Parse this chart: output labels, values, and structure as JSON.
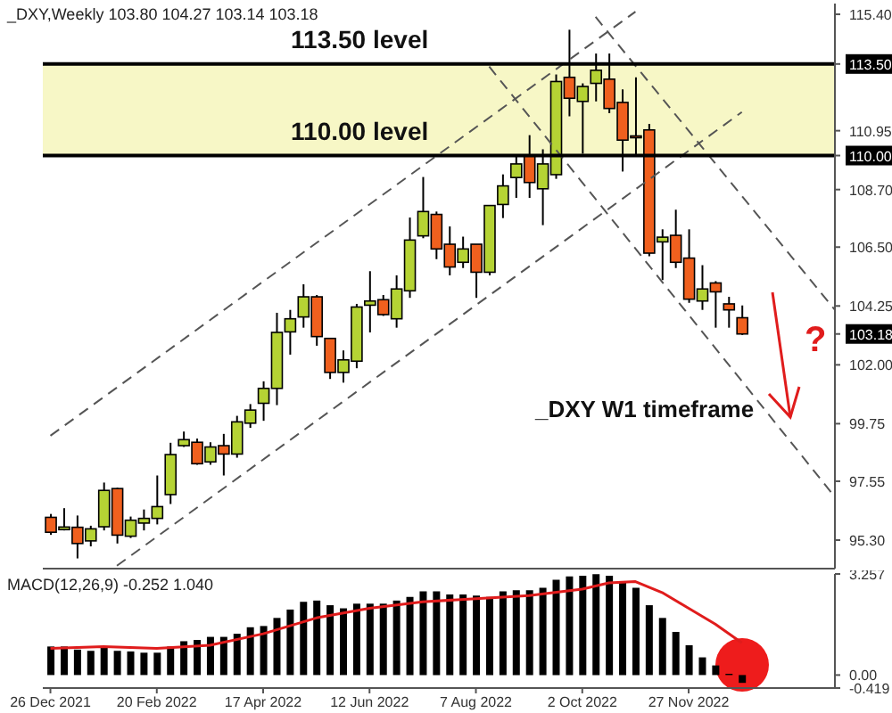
{
  "chart_data": [
    {
      "type": "candlestick",
      "title": "_DXY,Weekly  103.80 104.27 103.14 103.18",
      "x": [
        "2021-12-26",
        "2022-01-02",
        "2022-01-09",
        "2022-01-16",
        "2022-01-23",
        "2022-01-30",
        "2022-02-06",
        "2022-02-13",
        "2022-02-20",
        "2022-02-27",
        "2022-03-06",
        "2022-03-13",
        "2022-03-20",
        "2022-03-27",
        "2022-04-03",
        "2022-04-10",
        "2022-04-17",
        "2022-04-24",
        "2022-05-01",
        "2022-05-08",
        "2022-05-15",
        "2022-05-22",
        "2022-05-29",
        "2022-06-05",
        "2022-06-12",
        "2022-06-19",
        "2022-06-26",
        "2022-07-03",
        "2022-07-10",
        "2022-07-17",
        "2022-07-24",
        "2022-07-31",
        "2022-08-07",
        "2022-08-14",
        "2022-08-21",
        "2022-08-28",
        "2022-09-04",
        "2022-09-11",
        "2022-09-18",
        "2022-09-25",
        "2022-10-02",
        "2022-10-09",
        "2022-10-16",
        "2022-10-23",
        "2022-10-30",
        "2022-11-06",
        "2022-11-13",
        "2022-11-20",
        "2022-11-27",
        "2022-12-04",
        "2022-12-11",
        "2022-12-18",
        "2022-12-25"
      ],
      "ohlc": [
        [
          96.17,
          96.3,
          95.5,
          95.6
        ],
        [
          95.7,
          96.52,
          95.67,
          95.8
        ],
        [
          95.79,
          96.24,
          94.6,
          95.17
        ],
        [
          95.27,
          95.85,
          95.06,
          95.73
        ],
        [
          95.81,
          97.5,
          95.67,
          97.2
        ],
        [
          97.27,
          97.3,
          95.17,
          95.49
        ],
        [
          95.45,
          96.2,
          95.38,
          96.06
        ],
        [
          95.95,
          96.47,
          95.67,
          96.13
        ],
        [
          96.13,
          97.77,
          95.9,
          96.58
        ],
        [
          97.04,
          99.02,
          96.68,
          98.57
        ],
        [
          98.91,
          99.45,
          98.86,
          99.14
        ],
        [
          99.04,
          99.18,
          98.18,
          98.22
        ],
        [
          98.29,
          99.04,
          98.18,
          98.86
        ],
        [
          98.91,
          99.36,
          97.77,
          98.59
        ],
        [
          98.59,
          100.05,
          98.45,
          99.82
        ],
        [
          99.77,
          100.5,
          99.59,
          100.27
        ],
        [
          100.53,
          101.37,
          99.86,
          101.1
        ],
        [
          101.1,
          103.99,
          100.46,
          103.24
        ],
        [
          103.26,
          104.1,
          102.39,
          103.76
        ],
        [
          103.83,
          105.08,
          103.42,
          104.6
        ],
        [
          104.6,
          104.67,
          102.73,
          103.08
        ],
        [
          103.01,
          103.01,
          101.46,
          101.71
        ],
        [
          101.71,
          102.55,
          101.32,
          102.19
        ],
        [
          102.14,
          104.33,
          101.87,
          104.21
        ],
        [
          104.28,
          105.58,
          103.24,
          104.44
        ],
        [
          104.49,
          104.67,
          103.87,
          103.92
        ],
        [
          103.76,
          105.42,
          103.42,
          104.9
        ],
        [
          104.83,
          107.63,
          104.56,
          106.77
        ],
        [
          106.93,
          109.18,
          106.84,
          107.86
        ],
        [
          107.75,
          107.86,
          106.04,
          106.43
        ],
        [
          106.61,
          107.29,
          105.42,
          105.74
        ],
        [
          105.92,
          106.9,
          105.7,
          106.43
        ],
        [
          106.61,
          106.61,
          104.56,
          105.54
        ],
        [
          105.54,
          108.09,
          105.42,
          108.09
        ],
        [
          108.13,
          109.28,
          107.61,
          108.84
        ],
        [
          109.16,
          110.02,
          108.38,
          109.68
        ],
        [
          110.02,
          110.78,
          108.38,
          108.97
        ],
        [
          108.73,
          110.24,
          107.34,
          109.68
        ],
        [
          109.27,
          113.1,
          109.11,
          112.83
        ],
        [
          112.99,
          114.81,
          111.5,
          112.19
        ],
        [
          112.07,
          112.76,
          110.07,
          112.64
        ],
        [
          112.76,
          113.9,
          112.07,
          113.26
        ],
        [
          112.92,
          113.9,
          111.62,
          111.8
        ],
        [
          112.03,
          112.53,
          109.39,
          110.59
        ],
        [
          110.75,
          112.99,
          110.02,
          110.71
        ],
        [
          110.98,
          111.21,
          106.15,
          106.27
        ],
        [
          106.7,
          107.18,
          105.24,
          106.88
        ],
        [
          106.95,
          107.93,
          105.7,
          105.92
        ],
        [
          106.08,
          107.18,
          104.37,
          104.51
        ],
        [
          104.44,
          105.81,
          104.1,
          104.9
        ],
        [
          105.13,
          105.2,
          103.42,
          104.79
        ],
        [
          104.33,
          104.6,
          103.42,
          104.1
        ],
        [
          103.8,
          104.27,
          103.14,
          103.18
        ]
      ],
      "colors": [
        "#f0601e",
        "#b5d334",
        "#f0601e",
        "#b5d334",
        "#b5d334",
        "#f0601e",
        "#b5d334",
        "#b5d334",
        "#b5d334",
        "#b5d334",
        "#b5d334",
        "#f0601e",
        "#b5d334",
        "#f0601e",
        "#b5d334",
        "#b5d334",
        "#b5d334",
        "#b5d334",
        "#b5d334",
        "#b5d334",
        "#f0601e",
        "#f0601e",
        "#b5d334",
        "#b5d334",
        "#b5d334",
        "#f0601e",
        "#b5d334",
        "#b5d334",
        "#b5d334",
        "#f0601e",
        "#f0601e",
        "#b5d334",
        "#f0601e",
        "#b5d334",
        "#b5d334",
        "#b5d334",
        "#f0601e",
        "#b5d334",
        "#b5d334",
        "#f0601e",
        "#b5d334",
        "#b5d334",
        "#f0601e",
        "#f0601e",
        "#f0601e",
        "#f0601e",
        "#b5d334",
        "#f0601e",
        "#f0601e",
        "#b5d334",
        "#f0601e",
        "#f0601e",
        "#f0601e"
      ],
      "series": [
        {
          "type": "line",
          "color": "#555555",
          "x": [
            "2021-12-26",
            "2022-10-30"
          ],
          "values": [
            99.29,
            115.5
          ]
        },
        {
          "type": "line",
          "color": "#555555",
          "x": [
            "2022-01-30",
            "2022-12-25"
          ],
          "values": [
            94.32,
            111.66
          ]
        },
        {
          "type": "line",
          "color": "#555555",
          "x": [
            "2022-10-09",
            "2023-02-12"
          ],
          "values": [
            115.3,
            104.1
          ]
        },
        {
          "type": "line",
          "color": "#555555",
          "x": [
            "2022-08-14",
            "2023-02-12"
          ],
          "values": [
            113.4,
            96.95
          ]
        }
      ],
      "line_style": "dashed",
      "ref_lines": [
        {
          "axis": "y",
          "value": 113.5,
          "label": "113.50 level",
          "color": "#000000"
        },
        {
          "axis": "y",
          "value": 110.0,
          "label": "110.00 level",
          "color": "#000000"
        }
      ],
      "bands": [
        {
          "axis": "y",
          "from": 110.0,
          "to": 113.5,
          "color": "#f7f7c6"
        }
      ],
      "annotations": [
        "_DXY W1 timeframe",
        "?"
      ],
      "xlim": [
        "2021-12-22",
        "2023-02-12"
      ],
      "ylim": [
        94.21,
        115.81
      ],
      "yticks": [
        {
          "value": 115.4,
          "label": "115.40"
        },
        {
          "value": 113.5,
          "label": "113.50"
        },
        {
          "value": 110.95,
          "label": "110.95"
        },
        {
          "value": 110.0,
          "label": "110.00"
        },
        {
          "value": 108.7,
          "label": "108.70"
        },
        {
          "value": 106.5,
          "label": "106.50"
        },
        {
          "value": 104.25,
          "label": "104.25"
        },
        {
          "value": 103.18,
          "label": "103.18"
        },
        {
          "value": 102.0,
          "label": "102.00"
        },
        {
          "value": 99.75,
          "label": "99.75"
        },
        {
          "value": 97.55,
          "label": "97.55"
        },
        {
          "value": 95.3,
          "label": "95.30"
        }
      ],
      "tick_labels": "y"
    },
    {
      "type": "bar",
      "title": "MACD(12,26,9) -0.252 1.040",
      "x": [
        "2021-12-26",
        "2022-01-02",
        "2022-01-09",
        "2022-01-16",
        "2022-01-23",
        "2022-01-30",
        "2022-02-06",
        "2022-02-13",
        "2022-02-20",
        "2022-02-27",
        "2022-03-06",
        "2022-03-13",
        "2022-03-20",
        "2022-03-27",
        "2022-04-03",
        "2022-04-10",
        "2022-04-17",
        "2022-04-24",
        "2022-05-01",
        "2022-05-08",
        "2022-05-15",
        "2022-05-22",
        "2022-05-29",
        "2022-06-05",
        "2022-06-12",
        "2022-06-19",
        "2022-06-26",
        "2022-07-03",
        "2022-07-10",
        "2022-07-17",
        "2022-07-24",
        "2022-07-31",
        "2022-08-07",
        "2022-08-14",
        "2022-08-21",
        "2022-08-28",
        "2022-09-04",
        "2022-09-11",
        "2022-09-18",
        "2022-09-25",
        "2022-10-02",
        "2022-10-09",
        "2022-10-16",
        "2022-10-23",
        "2022-10-30",
        "2022-11-06",
        "2022-11-13",
        "2022-11-20",
        "2022-11-27",
        "2022-12-04",
        "2022-12-11",
        "2022-12-18",
        "2022-12-25"
      ],
      "series": [
        {
          "color": "#000000",
          "values": [
            0.92,
            0.92,
            0.82,
            0.78,
            0.92,
            0.78,
            0.76,
            0.72,
            0.72,
            0.92,
            1.09,
            1.13,
            1.23,
            1.23,
            1.33,
            1.54,
            1.58,
            1.84,
            2.11,
            2.36,
            2.4,
            2.25,
            2.15,
            2.3,
            2.3,
            2.3,
            2.4,
            2.52,
            2.7,
            2.7,
            2.6,
            2.6,
            2.56,
            2.52,
            2.7,
            2.73,
            2.73,
            2.81,
            3.07,
            3.18,
            3.2,
            3.25,
            3.2,
            2.97,
            2.81,
            2.25,
            1.84,
            1.39,
            0.96,
            0.57,
            0.31,
            0.04,
            -0.252
          ]
        },
        {
          "type": "line",
          "color": "#e01c1c",
          "x": [
            "2021-12-26",
            "2022-01-23",
            "2022-02-20",
            "2022-03-20",
            "2022-04-17",
            "2022-05-15",
            "2022-06-12",
            "2022-07-10",
            "2022-08-07",
            "2022-09-04",
            "2022-10-02",
            "2022-10-16",
            "2022-10-30",
            "2022-11-13",
            "2022-11-27",
            "2022-12-11",
            "2022-12-25"
          ],
          "values": [
            0.86,
            0.92,
            0.86,
            0.96,
            1.33,
            1.84,
            2.15,
            2.36,
            2.46,
            2.56,
            2.77,
            2.97,
            3.01,
            2.66,
            2.15,
            1.64,
            1.04
          ]
        }
      ],
      "xlim": [
        "2021-12-22",
        "2023-02-12"
      ],
      "xticks": [
        {
          "value": "2021-12-26",
          "label": "26 Dec 2021"
        },
        {
          "value": "2022-02-20",
          "label": "20 Feb 2022"
        },
        {
          "value": "2022-04-17",
          "label": "17 Apr 2022"
        },
        {
          "value": "2022-06-12",
          "label": "12 Jun 2022"
        },
        {
          "value": "2022-08-07",
          "label": "7 Aug 2022"
        },
        {
          "value": "2022-10-02",
          "label": "2 Oct 2022"
        },
        {
          "value": "2022-11-27",
          "label": "27 Nov 2022"
        }
      ],
      "ylim": [
        -0.419,
        3.257
      ],
      "yticks": [
        {
          "value": 3.257,
          "label": "3.257"
        },
        {
          "value": 0,
          "label": "0.00"
        },
        {
          "value": -0.419,
          "label": "-0.419"
        }
      ]
    }
  ]
}
